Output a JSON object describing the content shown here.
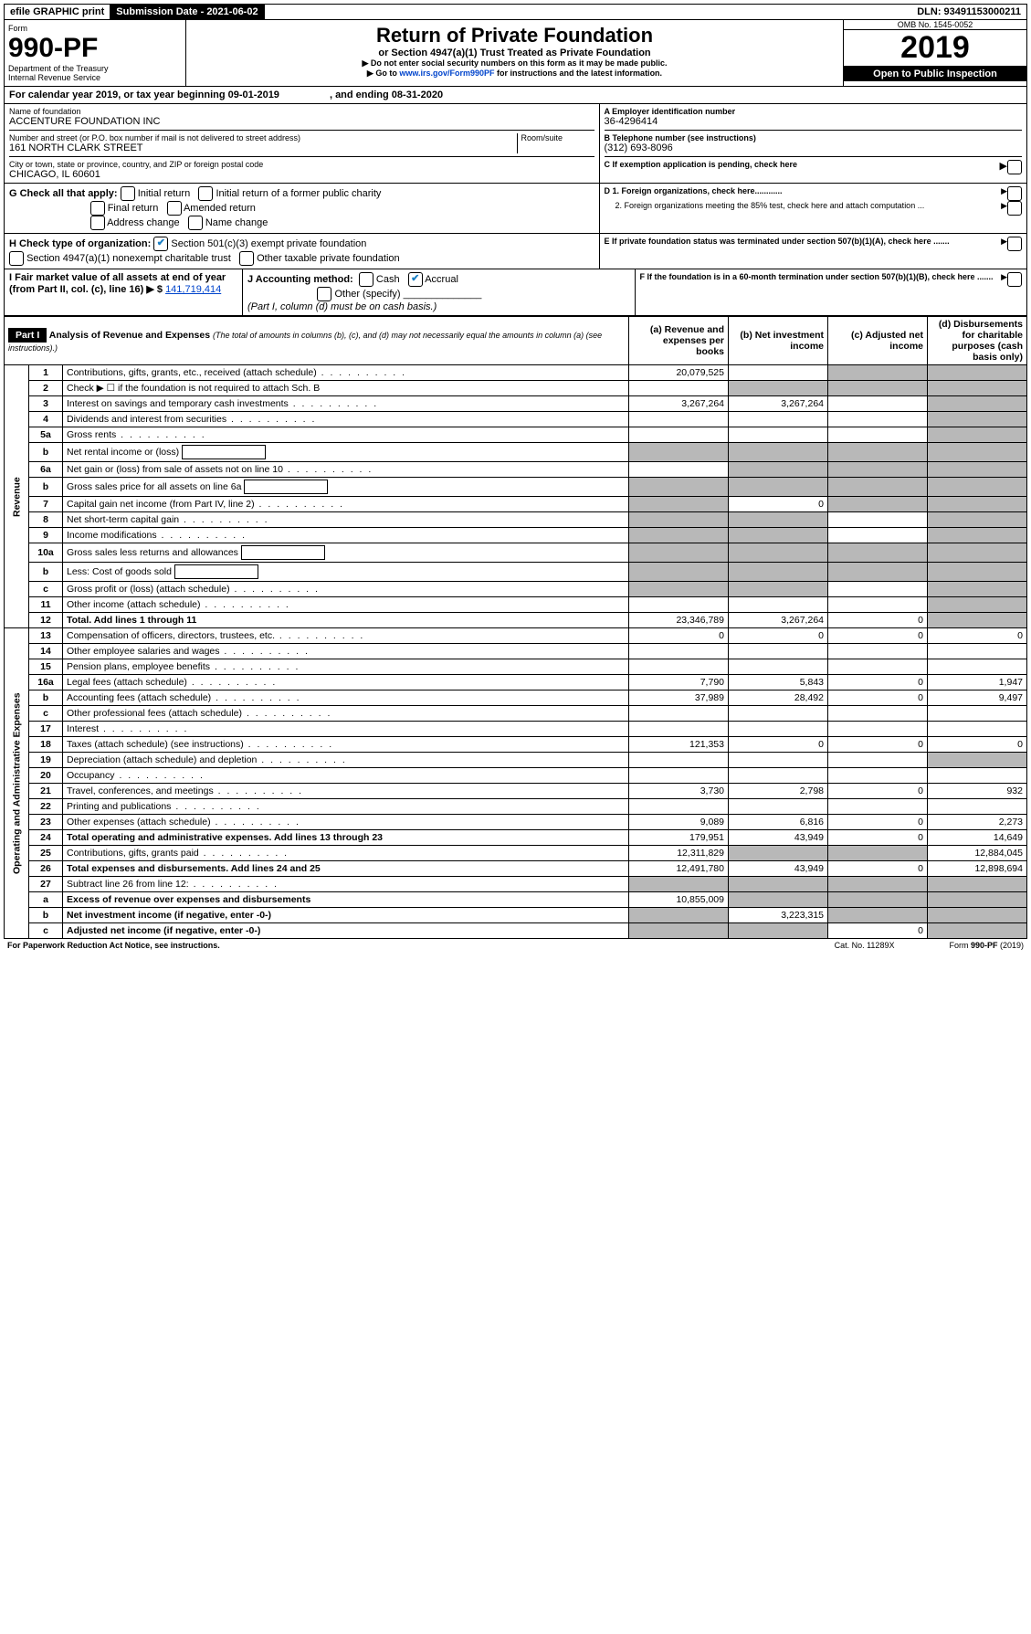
{
  "topbar": {
    "efile": "efile GRAPHIC print",
    "submission": "Submission Date - 2021-06-02",
    "dln": "DLN: 93491153000211"
  },
  "header": {
    "form_label": "Form",
    "form_num": "990-PF",
    "dept": "Department of the Treasury",
    "irs": "Internal Revenue Service",
    "title": "Return of Private Foundation",
    "subtitle": "or Section 4947(a)(1) Trust Treated as Private Foundation",
    "note1": "▶ Do not enter social security numbers on this form as it may be made public.",
    "note2_pre": "▶ Go to ",
    "note2_link": "www.irs.gov/Form990PF",
    "note2_post": " for instructions and the latest information.",
    "omb": "OMB No. 1545-0052",
    "year": "2019",
    "open": "Open to Public Inspection"
  },
  "cal": {
    "text_pre": "For calendar year 2019, or tax year beginning ",
    "begin": "09-01-2019",
    "mid": " , and ending ",
    "end": "08-31-2020"
  },
  "entity": {
    "name_label": "Name of foundation",
    "name": "ACCENTURE FOUNDATION INC",
    "addr_label": "Number and street (or P.O. box number if mail is not delivered to street address)",
    "addr": "161 NORTH CLARK STREET",
    "room_label": "Room/suite",
    "city_label": "City or town, state or province, country, and ZIP or foreign postal code",
    "city": "CHICAGO, IL  60601",
    "ein_label": "A Employer identification number",
    "ein": "36-4296414",
    "tel_label": "B Telephone number (see instructions)",
    "tel": "(312) 693-8096",
    "c_label": "C If exemption application is pending, check here"
  },
  "g": {
    "label": "G Check all that apply:",
    "opts": [
      "Initial return",
      "Initial return of a former public charity",
      "Final return",
      "Amended return",
      "Address change",
      "Name change"
    ]
  },
  "d": {
    "d1": "D 1. Foreign organizations, check here............",
    "d2": "2. Foreign organizations meeting the 85% test, check here and attach computation ..."
  },
  "h": {
    "label": "H Check type of organization:",
    "opt1": "Section 501(c)(3) exempt private foundation",
    "opt2": "Section 4947(a)(1) nonexempt charitable trust",
    "opt3": "Other taxable private foundation"
  },
  "e": "E  If private foundation status was terminated under section 507(b)(1)(A), check here .......",
  "i": {
    "label": "I Fair market value of all assets at end of year (from Part II, col. (c), line 16) ▶ $",
    "value": "141,719,414"
  },
  "j": {
    "label": "J Accounting method:",
    "cash": "Cash",
    "accrual": "Accrual",
    "other": "Other (specify)",
    "note": "(Part I, column (d) must be on cash basis.)"
  },
  "f": "F  If the foundation is in a 60-month termination under section 507(b)(1)(B), check here .......",
  "part1": {
    "label": "Part I",
    "title": "Analysis of Revenue and Expenses",
    "title_note": "(The total of amounts in columns (b), (c), and (d) may not necessarily equal the amounts in column (a) (see instructions).)",
    "col_a": "(a) Revenue and expenses per books",
    "col_b": "(b) Net investment income",
    "col_c": "(c) Adjusted net income",
    "col_d": "(d) Disbursements for charitable purposes (cash basis only)"
  },
  "sections": {
    "revenue": "Revenue",
    "expenses": "Operating and Administrative Expenses"
  },
  "rows": [
    {
      "n": "1",
      "desc": "Contributions, gifts, grants, etc., received (attach schedule)",
      "a": "20,079,525",
      "b": "",
      "c": "g",
      "d": "g"
    },
    {
      "n": "2",
      "desc": "Check ▶ ☐ if the foundation is not required to attach Sch. B",
      "a": "",
      "b": "g",
      "c": "g",
      "d": "g",
      "nodots": true
    },
    {
      "n": "3",
      "desc": "Interest on savings and temporary cash investments",
      "a": "3,267,264",
      "b": "3,267,264",
      "c": "",
      "d": "g"
    },
    {
      "n": "4",
      "desc": "Dividends and interest from securities",
      "a": "",
      "b": "",
      "c": "",
      "d": "g"
    },
    {
      "n": "5a",
      "desc": "Gross rents",
      "a": "",
      "b": "",
      "c": "",
      "d": "g"
    },
    {
      "n": "b",
      "desc": "Net rental income or (loss)",
      "a": "g",
      "b": "g",
      "c": "g",
      "d": "g",
      "box": true
    },
    {
      "n": "6a",
      "desc": "Net gain or (loss) from sale of assets not on line 10",
      "a": "",
      "b": "g",
      "c": "g",
      "d": "g"
    },
    {
      "n": "b",
      "desc": "Gross sales price for all assets on line 6a",
      "a": "g",
      "b": "g",
      "c": "g",
      "d": "g",
      "box": true
    },
    {
      "n": "7",
      "desc": "Capital gain net income (from Part IV, line 2)",
      "a": "g",
      "b": "0",
      "c": "g",
      "d": "g"
    },
    {
      "n": "8",
      "desc": "Net short-term capital gain",
      "a": "g",
      "b": "g",
      "c": "",
      "d": "g"
    },
    {
      "n": "9",
      "desc": "Income modifications",
      "a": "g",
      "b": "g",
      "c": "",
      "d": "g"
    },
    {
      "n": "10a",
      "desc": "Gross sales less returns and allowances",
      "a": "g",
      "b": "g",
      "c": "g",
      "d": "g",
      "box": true
    },
    {
      "n": "b",
      "desc": "Less: Cost of goods sold",
      "a": "g",
      "b": "g",
      "c": "g",
      "d": "g",
      "box": true
    },
    {
      "n": "c",
      "desc": "Gross profit or (loss) (attach schedule)",
      "a": "g",
      "b": "g",
      "c": "",
      "d": "g"
    },
    {
      "n": "11",
      "desc": "Other income (attach schedule)",
      "a": "",
      "b": "",
      "c": "",
      "d": "g"
    },
    {
      "n": "12",
      "desc": "Total. Add lines 1 through 11",
      "a": "23,346,789",
      "b": "3,267,264",
      "c": "0",
      "d": "g",
      "bold": true
    },
    {
      "n": "13",
      "desc": "Compensation of officers, directors, trustees, etc.",
      "a": "0",
      "b": "0",
      "c": "0",
      "d": "0"
    },
    {
      "n": "14",
      "desc": "Other employee salaries and wages",
      "a": "",
      "b": "",
      "c": "",
      "d": ""
    },
    {
      "n": "15",
      "desc": "Pension plans, employee benefits",
      "a": "",
      "b": "",
      "c": "",
      "d": ""
    },
    {
      "n": "16a",
      "desc": "Legal fees (attach schedule)",
      "a": "7,790",
      "b": "5,843",
      "c": "0",
      "d": "1,947"
    },
    {
      "n": "b",
      "desc": "Accounting fees (attach schedule)",
      "a": "37,989",
      "b": "28,492",
      "c": "0",
      "d": "9,497"
    },
    {
      "n": "c",
      "desc": "Other professional fees (attach schedule)",
      "a": "",
      "b": "",
      "c": "",
      "d": ""
    },
    {
      "n": "17",
      "desc": "Interest",
      "a": "",
      "b": "",
      "c": "",
      "d": ""
    },
    {
      "n": "18",
      "desc": "Taxes (attach schedule) (see instructions)",
      "a": "121,353",
      "b": "0",
      "c": "0",
      "d": "0"
    },
    {
      "n": "19",
      "desc": "Depreciation (attach schedule) and depletion",
      "a": "",
      "b": "",
      "c": "",
      "d": "g"
    },
    {
      "n": "20",
      "desc": "Occupancy",
      "a": "",
      "b": "",
      "c": "",
      "d": ""
    },
    {
      "n": "21",
      "desc": "Travel, conferences, and meetings",
      "a": "3,730",
      "b": "2,798",
      "c": "0",
      "d": "932"
    },
    {
      "n": "22",
      "desc": "Printing and publications",
      "a": "",
      "b": "",
      "c": "",
      "d": ""
    },
    {
      "n": "23",
      "desc": "Other expenses (attach schedule)",
      "a": "9,089",
      "b": "6,816",
      "c": "0",
      "d": "2,273"
    },
    {
      "n": "24",
      "desc": "Total operating and administrative expenses. Add lines 13 through 23",
      "a": "179,951",
      "b": "43,949",
      "c": "0",
      "d": "14,649",
      "bold": true
    },
    {
      "n": "25",
      "desc": "Contributions, gifts, grants paid",
      "a": "12,311,829",
      "b": "g",
      "c": "g",
      "d": "12,884,045"
    },
    {
      "n": "26",
      "desc": "Total expenses and disbursements. Add lines 24 and 25",
      "a": "12,491,780",
      "b": "43,949",
      "c": "0",
      "d": "12,898,694",
      "bold": true
    },
    {
      "n": "27",
      "desc": "Subtract line 26 from line 12:",
      "a": "g",
      "b": "g",
      "c": "g",
      "d": "g"
    },
    {
      "n": "a",
      "desc": "Excess of revenue over expenses and disbursements",
      "a": "10,855,009",
      "b": "g",
      "c": "g",
      "d": "g",
      "bold": true
    },
    {
      "n": "b",
      "desc": "Net investment income (if negative, enter -0-)",
      "a": "g",
      "b": "3,223,315",
      "c": "g",
      "d": "g",
      "bold": true
    },
    {
      "n": "c",
      "desc": "Adjusted net income (if negative, enter -0-)",
      "a": "g",
      "b": "g",
      "c": "0",
      "d": "g",
      "bold": true
    }
  ],
  "footer": {
    "left": "For Paperwork Reduction Act Notice, see instructions.",
    "mid": "Cat. No. 11289X",
    "right": "Form 990-PF (2019)"
  }
}
